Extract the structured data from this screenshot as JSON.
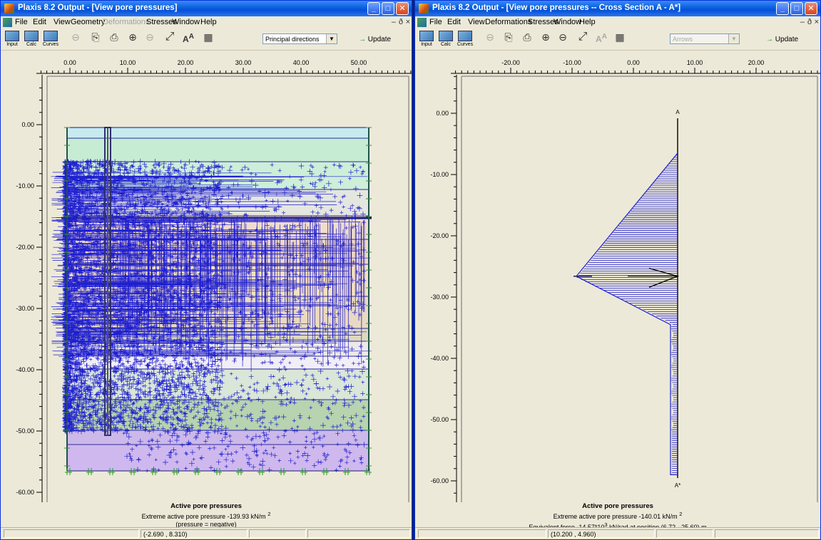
{
  "left": {
    "title": "Plaxis 8.2 Output - [View pore pressures]",
    "menu": [
      "File",
      "Edit",
      "View",
      "Geometry",
      "Deformations",
      "Stresses",
      "Window",
      "Help"
    ],
    "menu_disabled": [
      4
    ],
    "tools": {
      "input": "Input",
      "calc": "Calc",
      "curves": "Curves"
    },
    "dropdown": "Principal directions",
    "update": "Update",
    "ruler_top": [
      "0.00",
      "10.00",
      "20.00",
      "30.00",
      "40.00",
      "50.00"
    ],
    "ruler_left": [
      "0.00",
      "-10.00",
      "-20.00",
      "-30.00",
      "-40.00",
      "-50.00",
      "-60.00"
    ],
    "caption_title": "Active pore pressures",
    "caption_line1": "Extreme active pore pressure -139.93 kN/m",
    "caption_line2": "(pressure = negative)",
    "coords": "(-2.690 , 8.310)",
    "soil_colors": [
      "#c7eaf0",
      "#c6ecd4",
      "#cdeed8",
      "#e4e6e0",
      "#f1dccb",
      "#efd7c4",
      "#f5e0c2",
      "#e9d9c3",
      "#ddd8c0",
      "#ede9e8",
      "#f2eef6",
      "#d9e6d8",
      "#b7d3b0",
      "#ccb9ea",
      "#cfb8ee"
    ]
  },
  "right": {
    "title": "Plaxis 8.2 Output - [View pore pressures  --  Cross Section A - A*]",
    "menu": [
      "File",
      "Edit",
      "View",
      "Deformations",
      "Stresses",
      "Window",
      "Help"
    ],
    "tools": {
      "input": "Input",
      "calc": "Calc",
      "curves": "Curves"
    },
    "dropdown": "Arrows",
    "update": "Update",
    "ruler_top": [
      "-20.00",
      "-10.00",
      "0.00",
      "10.00",
      "20.00"
    ],
    "ruler_left": [
      "0.00",
      "-10.00",
      "-20.00",
      "-30.00",
      "-40.00",
      "-50.00",
      "-60.00"
    ],
    "section_top": "A",
    "section_bottom": "A*",
    "caption_title": "Active pore pressures",
    "caption_line1": "Extreme active pore pressure -140.01 kN/m",
    "caption_line2": "Equivalent force  -14.57*10",
    "caption_line2b": " kN/rad at position (6.72, -25.60) m",
    "coords": "(10.200 , 4.960)"
  }
}
